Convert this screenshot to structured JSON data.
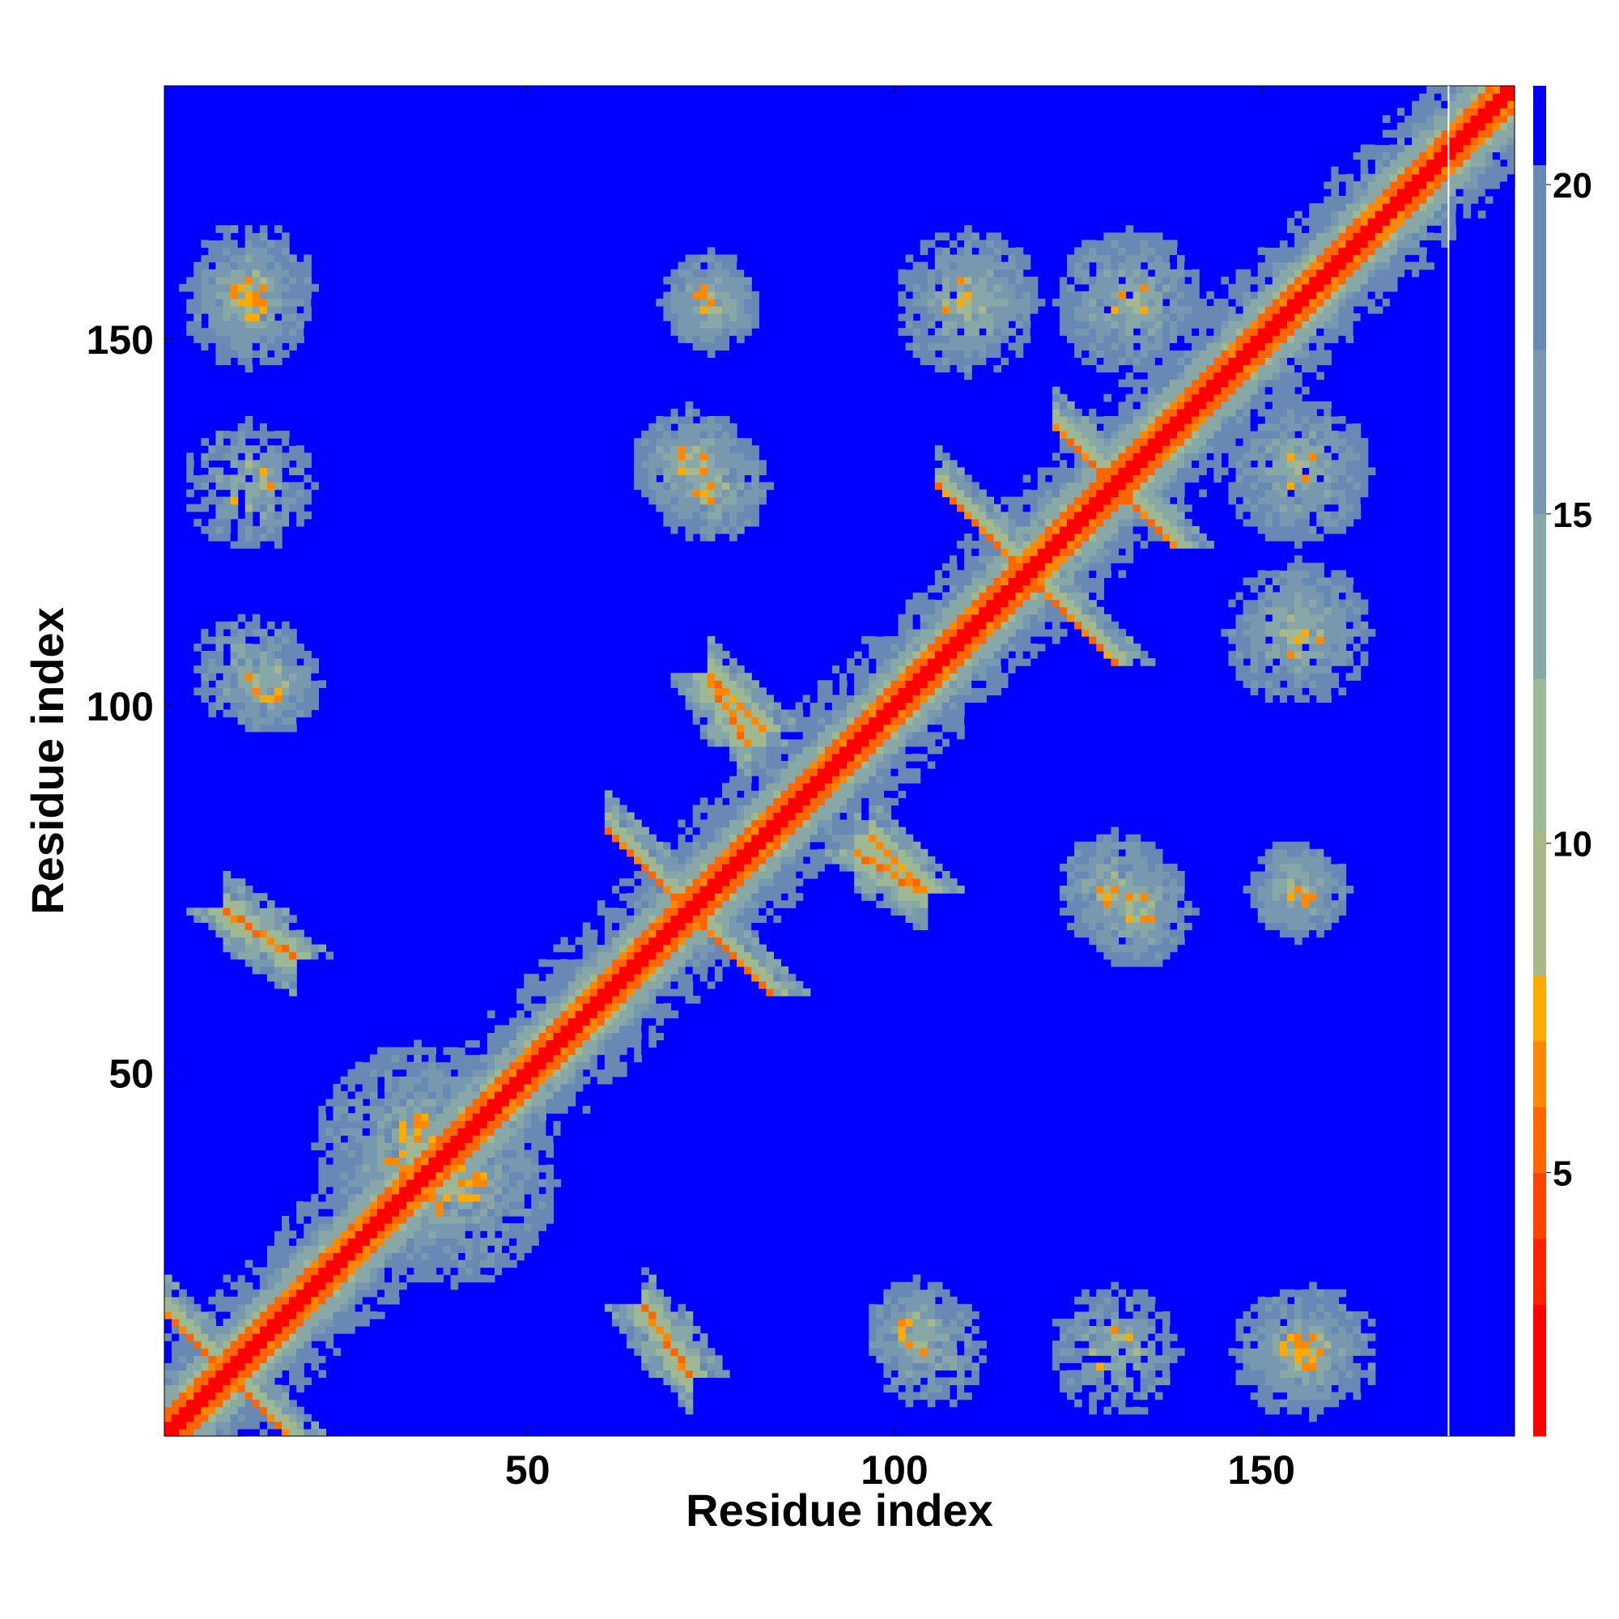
{
  "chart_data": {
    "type": "heatmap",
    "title": "",
    "xlabel": "Residue index",
    "ylabel": "Residue index",
    "xlim": [
      1,
      184
    ],
    "ylim": [
      1,
      184
    ],
    "x_ticks": [
      50,
      100,
      150
    ],
    "y_ticks": [
      50,
      100,
      150
    ],
    "colorbar": {
      "range": [
        1,
        21.5
      ],
      "ticks": [
        5,
        10,
        15,
        20
      ],
      "colors": [
        "#ff0000",
        "#ff2200",
        "#ff4400",
        "#ff6600",
        "#ff8800",
        "#ffaa00",
        "#a8b888",
        "#9cb894",
        "#88a8a8",
        "#7898b0",
        "#6a88b4",
        "#0000ff"
      ],
      "bounds": [
        1,
        3,
        4,
        5,
        6,
        7,
        8,
        10.2,
        12.5,
        15,
        17.5,
        20.3,
        21.5
      ]
    },
    "matrix_description": "Symmetric residue-residue distance map",
    "contact_motifs": [
      {
        "kind": "diagonal",
        "from": 1,
        "to": 184
      },
      {
        "kind": "antidiagonal",
        "center": [
          9,
          9
        ],
        "half_length": 8
      },
      {
        "kind": "antidiagonal",
        "center": [
          72,
          72
        ],
        "half_length": 11
      },
      {
        "kind": "antidiagonal",
        "center": [
          118,
          118
        ],
        "half_length": 12
      },
      {
        "kind": "antidiagonal",
        "center": [
          130,
          130
        ],
        "half_length": 8
      },
      {
        "kind": "parallel",
        "start": [
          9,
          72
        ],
        "end": [
          18,
          66
        ]
      },
      {
        "kind": "parallel",
        "start": [
          72,
          9
        ],
        "end": [
          66,
          18
        ]
      },
      {
        "kind": "parallel",
        "start": [
          75,
          104
        ],
        "end": [
          82,
          97
        ]
      },
      {
        "kind": "parallel",
        "start": [
          104,
          75
        ],
        "end": [
          97,
          82
        ]
      },
      {
        "kind": "parallel",
        "start": [
          95,
          80
        ],
        "end": [
          103,
          75
        ]
      },
      {
        "kind": "parallel",
        "start": [
          80,
          95
        ],
        "end": [
          75,
          103
        ]
      },
      {
        "kind": "blob",
        "center": [
          12,
          155
        ],
        "radius": 9
      },
      {
        "kind": "blob",
        "center": [
          155,
          12
        ],
        "radius": 9
      },
      {
        "kind": "blob",
        "center": [
          75,
          155
        ],
        "radius": 7
      },
      {
        "kind": "blob",
        "center": [
          155,
          75
        ],
        "radius": 7
      },
      {
        "kind": "blob",
        "center": [
          72,
          133
        ],
        "radius": 8
      },
      {
        "kind": "blob",
        "center": [
          133,
          72
        ],
        "radius": 8
      },
      {
        "kind": "blob",
        "center": [
          15,
          103
        ],
        "radius": 7
      },
      {
        "kind": "blob",
        "center": [
          103,
          15
        ],
        "radius": 7
      },
      {
        "kind": "blob",
        "center": [
          110,
          155
        ],
        "radius": 10
      },
      {
        "kind": "blob",
        "center": [
          155,
          110
        ],
        "radius": 10
      },
      {
        "kind": "blob",
        "center": [
          132,
          155
        ],
        "radius": 10
      },
      {
        "kind": "blob",
        "center": [
          155,
          132
        ],
        "radius": 10
      },
      {
        "kind": "blob",
        "center": [
          130,
          75
        ],
        "radius": 8
      },
      {
        "kind": "blob",
        "center": [
          75,
          130
        ],
        "radius": 8
      },
      {
        "kind": "blob",
        "center": [
          155,
          75
        ],
        "radius": 7
      },
      {
        "kind": "blob",
        "center": [
          157,
          12
        ],
        "radius": 9
      },
      {
        "kind": "blob",
        "center": [
          105,
          12
        ],
        "radius": 8
      },
      {
        "kind": "blob",
        "center": [
          130,
          12
        ],
        "radius": 9
      },
      {
        "kind": "blob",
        "center": [
          40,
          35
        ],
        "radius": 14
      },
      {
        "kind": "blob",
        "center": [
          35,
          40
        ],
        "radius": 14
      }
    ]
  }
}
